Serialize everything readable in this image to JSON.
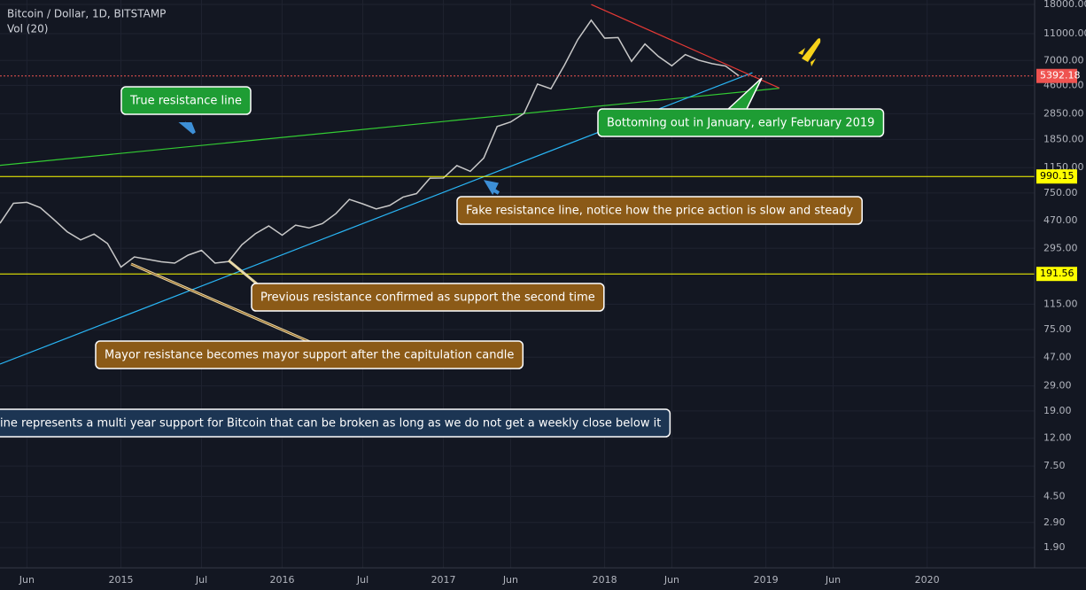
{
  "chart_data": {
    "type": "line",
    "title": "Bitcoin / Dollar, 1D, BITSTAMP",
    "subtitle": "Vol (20)",
    "log_scale": true,
    "grid": true,
    "color": "#c8c8c8",
    "x": [
      "2014-04",
      "2014-05",
      "2014-06",
      "2014-07",
      "2014-08",
      "2014-09",
      "2014-10",
      "2014-11",
      "2014-12",
      "2015-01",
      "2015-02",
      "2015-03",
      "2015-04",
      "2015-05",
      "2015-06",
      "2015-07",
      "2015-08",
      "2015-09",
      "2015-10",
      "2015-11",
      "2015-12",
      "2016-01",
      "2016-02",
      "2016-03",
      "2016-04",
      "2016-05",
      "2016-06",
      "2016-07",
      "2016-08",
      "2016-09",
      "2016-10",
      "2016-11",
      "2016-12",
      "2017-01",
      "2017-02",
      "2017-03",
      "2017-04",
      "2017-05",
      "2017-06",
      "2017-07",
      "2017-08",
      "2017-09",
      "2017-10",
      "2017-11",
      "2017-12",
      "2018-01",
      "2018-02",
      "2018-03",
      "2018-04",
      "2018-05",
      "2018-06",
      "2018-07",
      "2018-08",
      "2018-09",
      "2018-10",
      "2018-11"
    ],
    "values": [
      450,
      630,
      640,
      585,
      480,
      390,
      340,
      375,
      320,
      215,
      255,
      245,
      235,
      230,
      263,
      285,
      230,
      236,
      313,
      377,
      430,
      368,
      436,
      416,
      448,
      530,
      673,
      624,
      573,
      608,
      700,
      742,
      963,
      965,
      1190,
      1080,
      1350,
      2300,
      2480,
      2870,
      4700,
      4340,
      6450,
      9950,
      13800,
      10200,
      10300,
      6900,
      9240,
      7500,
      6400,
      7730,
      7030,
      6630,
      6370,
      5392.18
    ],
    "xlim": [
      "2014-04",
      "2020-09"
    ],
    "xticks": [
      {
        "value": "2014-06",
        "label": "Jun"
      },
      {
        "value": "2015-01",
        "label": "2015"
      },
      {
        "value": "2015-07",
        "label": "Jul"
      },
      {
        "value": "2016-01",
        "label": "2016"
      },
      {
        "value": "2016-07",
        "label": "Jul"
      },
      {
        "value": "2017-01",
        "label": "2017"
      },
      {
        "value": "2017-06",
        "label": "Jun"
      },
      {
        "value": "2018-01",
        "label": "2018"
      },
      {
        "value": "2018-06",
        "label": "Jun"
      },
      {
        "value": "2019-01",
        "label": "2019"
      },
      {
        "value": "2019-06",
        "label": "Jun"
      },
      {
        "value": "2020-01",
        "label": "2020"
      }
    ],
    "ylim": [
      1.35,
      19400
    ],
    "yticks": [
      {
        "value": 18000,
        "label": "18000.00"
      },
      {
        "value": 11000,
        "label": "11000.00"
      },
      {
        "value": 7000,
        "label": "7000.00"
      },
      {
        "value": 4600,
        "label": "4600.00"
      },
      {
        "value": 2850,
        "label": "2850.00"
      },
      {
        "value": 1850,
        "label": "1850.00"
      },
      {
        "value": 1150,
        "label": "1150.00"
      },
      {
        "value": 750,
        "label": "750.00"
      },
      {
        "value": 470,
        "label": "470.00"
      },
      {
        "value": 295,
        "label": "295.00"
      },
      {
        "value": 115,
        "label": "115.00"
      },
      {
        "value": 75,
        "label": "75.00"
      },
      {
        "value": 47,
        "label": "47.00"
      },
      {
        "value": 29,
        "label": "29.00"
      },
      {
        "value": 19,
        "label": "19.00"
      },
      {
        "value": 12,
        "label": "12.00"
      },
      {
        "value": 7.5,
        "label": "7.50"
      },
      {
        "value": 4.5,
        "label": "4.50"
      },
      {
        "value": 2.9,
        "label": "2.90"
      },
      {
        "value": 1.9,
        "label": "1.90"
      }
    ],
    "hlines": [
      {
        "value": 5392.18,
        "color": "#ef5350"
      },
      {
        "value": 990.15,
        "color": "#ffff00"
      },
      {
        "value": 191.56,
        "color": "#ffff00"
      }
    ],
    "lines": [
      {
        "x": [
          "2014-04",
          "2019-02"
        ],
        "y": [
          1195,
          4380
        ],
        "color": "#33cc33"
      },
      {
        "x": [
          "2014-04",
          "2018-12"
        ],
        "y": [
          41.9,
          5700
        ],
        "color": "#29b6f6"
      },
      {
        "x": [
          "2017-12",
          "2019-02"
        ],
        "y": [
          18000,
          4400
        ],
        "color": "#e53935"
      }
    ],
    "annotations": [
      {
        "text": "True resistance line",
        "color": "#1e9d34"
      },
      {
        "text": "Bottoming out in January, early February 2019",
        "color": "#1e9d34"
      },
      {
        "text": "Fake resistance line, notice how the price action is slow and steady",
        "color": "#8b5a17"
      },
      {
        "text": "Previous resistance confirmed as support the second time",
        "color": "#8b5a17"
      },
      {
        "text": "Mayor resistance becomes mayor support after the capitulation candle",
        "color": "#8b5a17"
      },
      {
        "text": "ine represents a multi year support for Bitcoin that can be broken as long as we do not get a weekly close below it",
        "color": "#1c3553"
      }
    ]
  }
}
